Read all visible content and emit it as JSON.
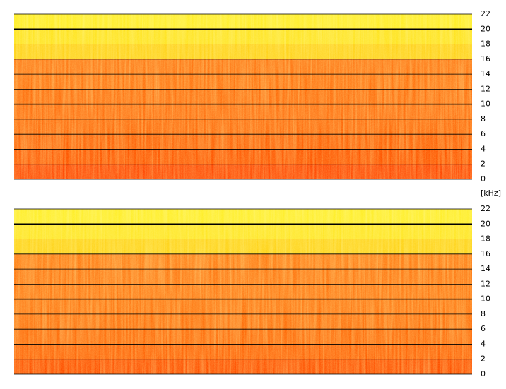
{
  "chart_data": [
    {
      "type": "spectrogram",
      "ylabel": "[kHz]",
      "ylim": [
        0,
        22
      ],
      "yticks": [
        0,
        2,
        4,
        6,
        8,
        10,
        12,
        14,
        16,
        18,
        20,
        22
      ],
      "grid": true,
      "band_colors": [
        "#ff4400",
        "#ff5500",
        "#ff6208",
        "#ff6a0c",
        "#ff6e10",
        "#ff7010",
        "#ff7412",
        "#ff7614",
        "#ffd21a",
        "#ffe424",
        "#ffee2a"
      ]
    },
    {
      "type": "spectrogram",
      "ylim": [
        0,
        22
      ],
      "yticks": [
        0,
        2,
        4,
        6,
        8,
        10,
        12,
        14,
        16,
        18,
        20,
        22
      ],
      "grid": true,
      "band_colors": [
        "#ff5000",
        "#ff6004",
        "#ff6c0c",
        "#ff7210",
        "#ff7612",
        "#ff7814",
        "#ff7a16",
        "#ff7e18",
        "#ffd41c",
        "#ffe626",
        "#ffee2c"
      ]
    }
  ]
}
